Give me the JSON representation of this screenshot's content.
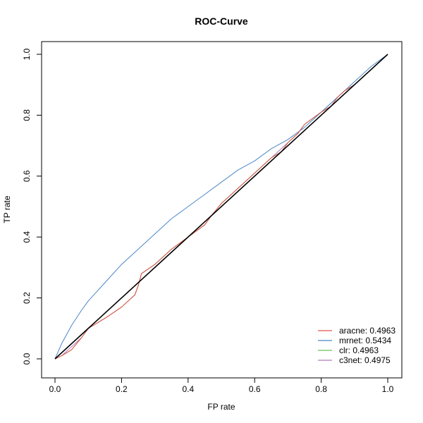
{
  "chart_data": {
    "type": "line",
    "title": "ROC-Curve",
    "xlabel": "FP rate",
    "ylabel": "TP rate",
    "xlim": [
      0,
      1
    ],
    "ylim": [
      0,
      1
    ],
    "xticks": [
      "0.0",
      "0.2",
      "0.4",
      "0.6",
      "0.8",
      "1.0"
    ],
    "yticks": [
      "0.0",
      "0.2",
      "0.4",
      "0.6",
      "0.8",
      "1.0"
    ],
    "grid": false,
    "legend_position": "bottom-right",
    "series": [
      {
        "name": "aracne: 0.4963",
        "color": "#e0534a",
        "x": [
          0,
          0.02,
          0.05,
          0.08,
          0.1,
          0.13,
          0.16,
          0.2,
          0.24,
          0.25,
          0.26,
          0.3,
          0.35,
          0.4,
          0.45,
          0.47,
          0.5,
          0.55,
          0.6,
          0.65,
          0.68,
          0.7,
          0.73,
          0.75,
          0.8,
          0.83,
          0.85,
          0.87,
          0.9,
          0.95,
          1
        ],
        "y": [
          0,
          0.01,
          0.03,
          0.07,
          0.1,
          0.12,
          0.14,
          0.17,
          0.21,
          0.24,
          0.28,
          0.31,
          0.36,
          0.4,
          0.44,
          0.47,
          0.51,
          0.56,
          0.61,
          0.66,
          0.68,
          0.71,
          0.74,
          0.77,
          0.81,
          0.83,
          0.86,
          0.88,
          0.9,
          0.95,
          1
        ]
      },
      {
        "name": "mrnet: 0.5434",
        "color": "#4a86c8",
        "x": [
          0,
          0.02,
          0.05,
          0.08,
          0.1,
          0.15,
          0.2,
          0.25,
          0.3,
          0.35,
          0.4,
          0.45,
          0.5,
          0.55,
          0.6,
          0.65,
          0.7,
          0.75,
          0.8,
          0.85,
          0.9,
          0.95,
          1
        ],
        "y": [
          0,
          0.05,
          0.11,
          0.16,
          0.19,
          0.25,
          0.31,
          0.36,
          0.41,
          0.46,
          0.5,
          0.54,
          0.58,
          0.62,
          0.65,
          0.69,
          0.72,
          0.76,
          0.81,
          0.86,
          0.91,
          0.96,
          1
        ]
      },
      {
        "name": "clr: 0.4963",
        "color": "#6abf5a",
        "x": [
          0,
          0.02,
          0.05,
          0.08,
          0.1,
          0.13,
          0.16,
          0.2,
          0.24,
          0.25,
          0.26,
          0.3,
          0.35,
          0.4,
          0.45,
          0.47,
          0.5,
          0.55,
          0.6,
          0.65,
          0.68,
          0.7,
          0.73,
          0.75,
          0.8,
          0.83,
          0.85,
          0.87,
          0.9,
          0.95,
          1
        ],
        "y": [
          0,
          0.01,
          0.03,
          0.07,
          0.1,
          0.12,
          0.14,
          0.17,
          0.21,
          0.24,
          0.28,
          0.31,
          0.36,
          0.4,
          0.44,
          0.47,
          0.51,
          0.56,
          0.61,
          0.66,
          0.68,
          0.71,
          0.74,
          0.77,
          0.81,
          0.83,
          0.86,
          0.88,
          0.9,
          0.95,
          1
        ]
      },
      {
        "name": "c3net: 0.4975",
        "color": "#b07ac0",
        "x": [
          0,
          0.02,
          0.05,
          0.08,
          0.1,
          0.13,
          0.16,
          0.2,
          0.24,
          0.25,
          0.26,
          0.3,
          0.35,
          0.4,
          0.45,
          0.47,
          0.5,
          0.55,
          0.6,
          0.65,
          0.68,
          0.7,
          0.73,
          0.75,
          0.8,
          0.83,
          0.85,
          0.87,
          0.9,
          0.95,
          1
        ],
        "y": [
          0,
          0.01,
          0.04,
          0.07,
          0.1,
          0.12,
          0.14,
          0.17,
          0.21,
          0.24,
          0.28,
          0.31,
          0.36,
          0.4,
          0.44,
          0.47,
          0.51,
          0.56,
          0.61,
          0.66,
          0.69,
          0.71,
          0.74,
          0.77,
          0.81,
          0.84,
          0.86,
          0.88,
          0.9,
          0.95,
          1
        ]
      }
    ],
    "reference_line": {
      "x": [
        0,
        1
      ],
      "y": [
        0,
        1
      ],
      "color": "#000000"
    }
  }
}
